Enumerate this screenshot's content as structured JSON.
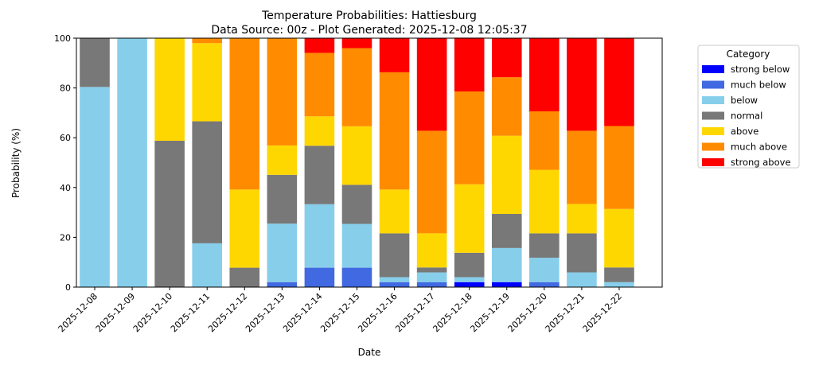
{
  "chart_data": {
    "type": "bar",
    "stacked": true,
    "title": "Temperature Probabilities: Hattiesburg",
    "subtitle": "Data Source: 00z - Plot Generated: 2025-12-08 12:05:37",
    "xlabel": "Date",
    "ylabel": "Probability (%)",
    "ylim": [
      0,
      100
    ],
    "yticks": [
      "0",
      "20",
      "40",
      "60",
      "80",
      "100"
    ],
    "legend_title": "Category",
    "legend_position": "outside-right",
    "categories": [
      "2025-12-08",
      "2025-12-09",
      "2025-12-10",
      "2025-12-11",
      "2025-12-12",
      "2025-12-13",
      "2025-12-14",
      "2025-12-15",
      "2025-12-16",
      "2025-12-17",
      "2025-12-18",
      "2025-12-19",
      "2025-12-20",
      "2025-12-21",
      "2025-12-22"
    ],
    "series": [
      {
        "name": "strong below",
        "color": "#0000ff",
        "values": [
          0,
          0,
          0,
          0,
          0,
          0,
          0,
          0,
          0,
          0,
          2,
          2,
          0,
          0,
          0
        ]
      },
      {
        "name": "much below",
        "color": "#4169e1",
        "values": [
          0,
          0,
          0,
          0,
          0,
          2,
          7.8,
          7.8,
          2,
          2,
          0,
          0,
          2,
          0,
          0
        ]
      },
      {
        "name": "below",
        "color": "#87ceeb",
        "values": [
          80.4,
          100,
          0,
          17.6,
          0,
          23.5,
          25.5,
          17.6,
          2,
          3.9,
          2,
          13.7,
          9.8,
          5.9,
          2
        ]
      },
      {
        "name": "normal",
        "color": "#787878",
        "values": [
          19.6,
          0,
          58.8,
          49,
          7.8,
          19.6,
          23.5,
          15.7,
          17.6,
          2,
          9.8,
          13.7,
          9.8,
          15.7,
          5.9
        ]
      },
      {
        "name": "above",
        "color": "#ffd700",
        "values": [
          0,
          0,
          41.2,
          31.4,
          31.4,
          11.8,
          11.8,
          23.5,
          17.6,
          13.7,
          27.5,
          31.4,
          25.5,
          11.8,
          23.5
        ]
      },
      {
        "name": "much above",
        "color": "#ff8c00",
        "values": [
          0,
          0,
          0,
          2,
          60.8,
          43.1,
          25.5,
          31.4,
          47.1,
          41.2,
          37.3,
          23.5,
          23.5,
          29.4,
          33.3
        ]
      },
      {
        "name": "strong above",
        "color": "#ff0000",
        "values": [
          0,
          0,
          0,
          0,
          0,
          0,
          5.9,
          3.9,
          13.7,
          37.3,
          21.6,
          15.7,
          29.4,
          37.3,
          35.3
        ]
      }
    ]
  }
}
